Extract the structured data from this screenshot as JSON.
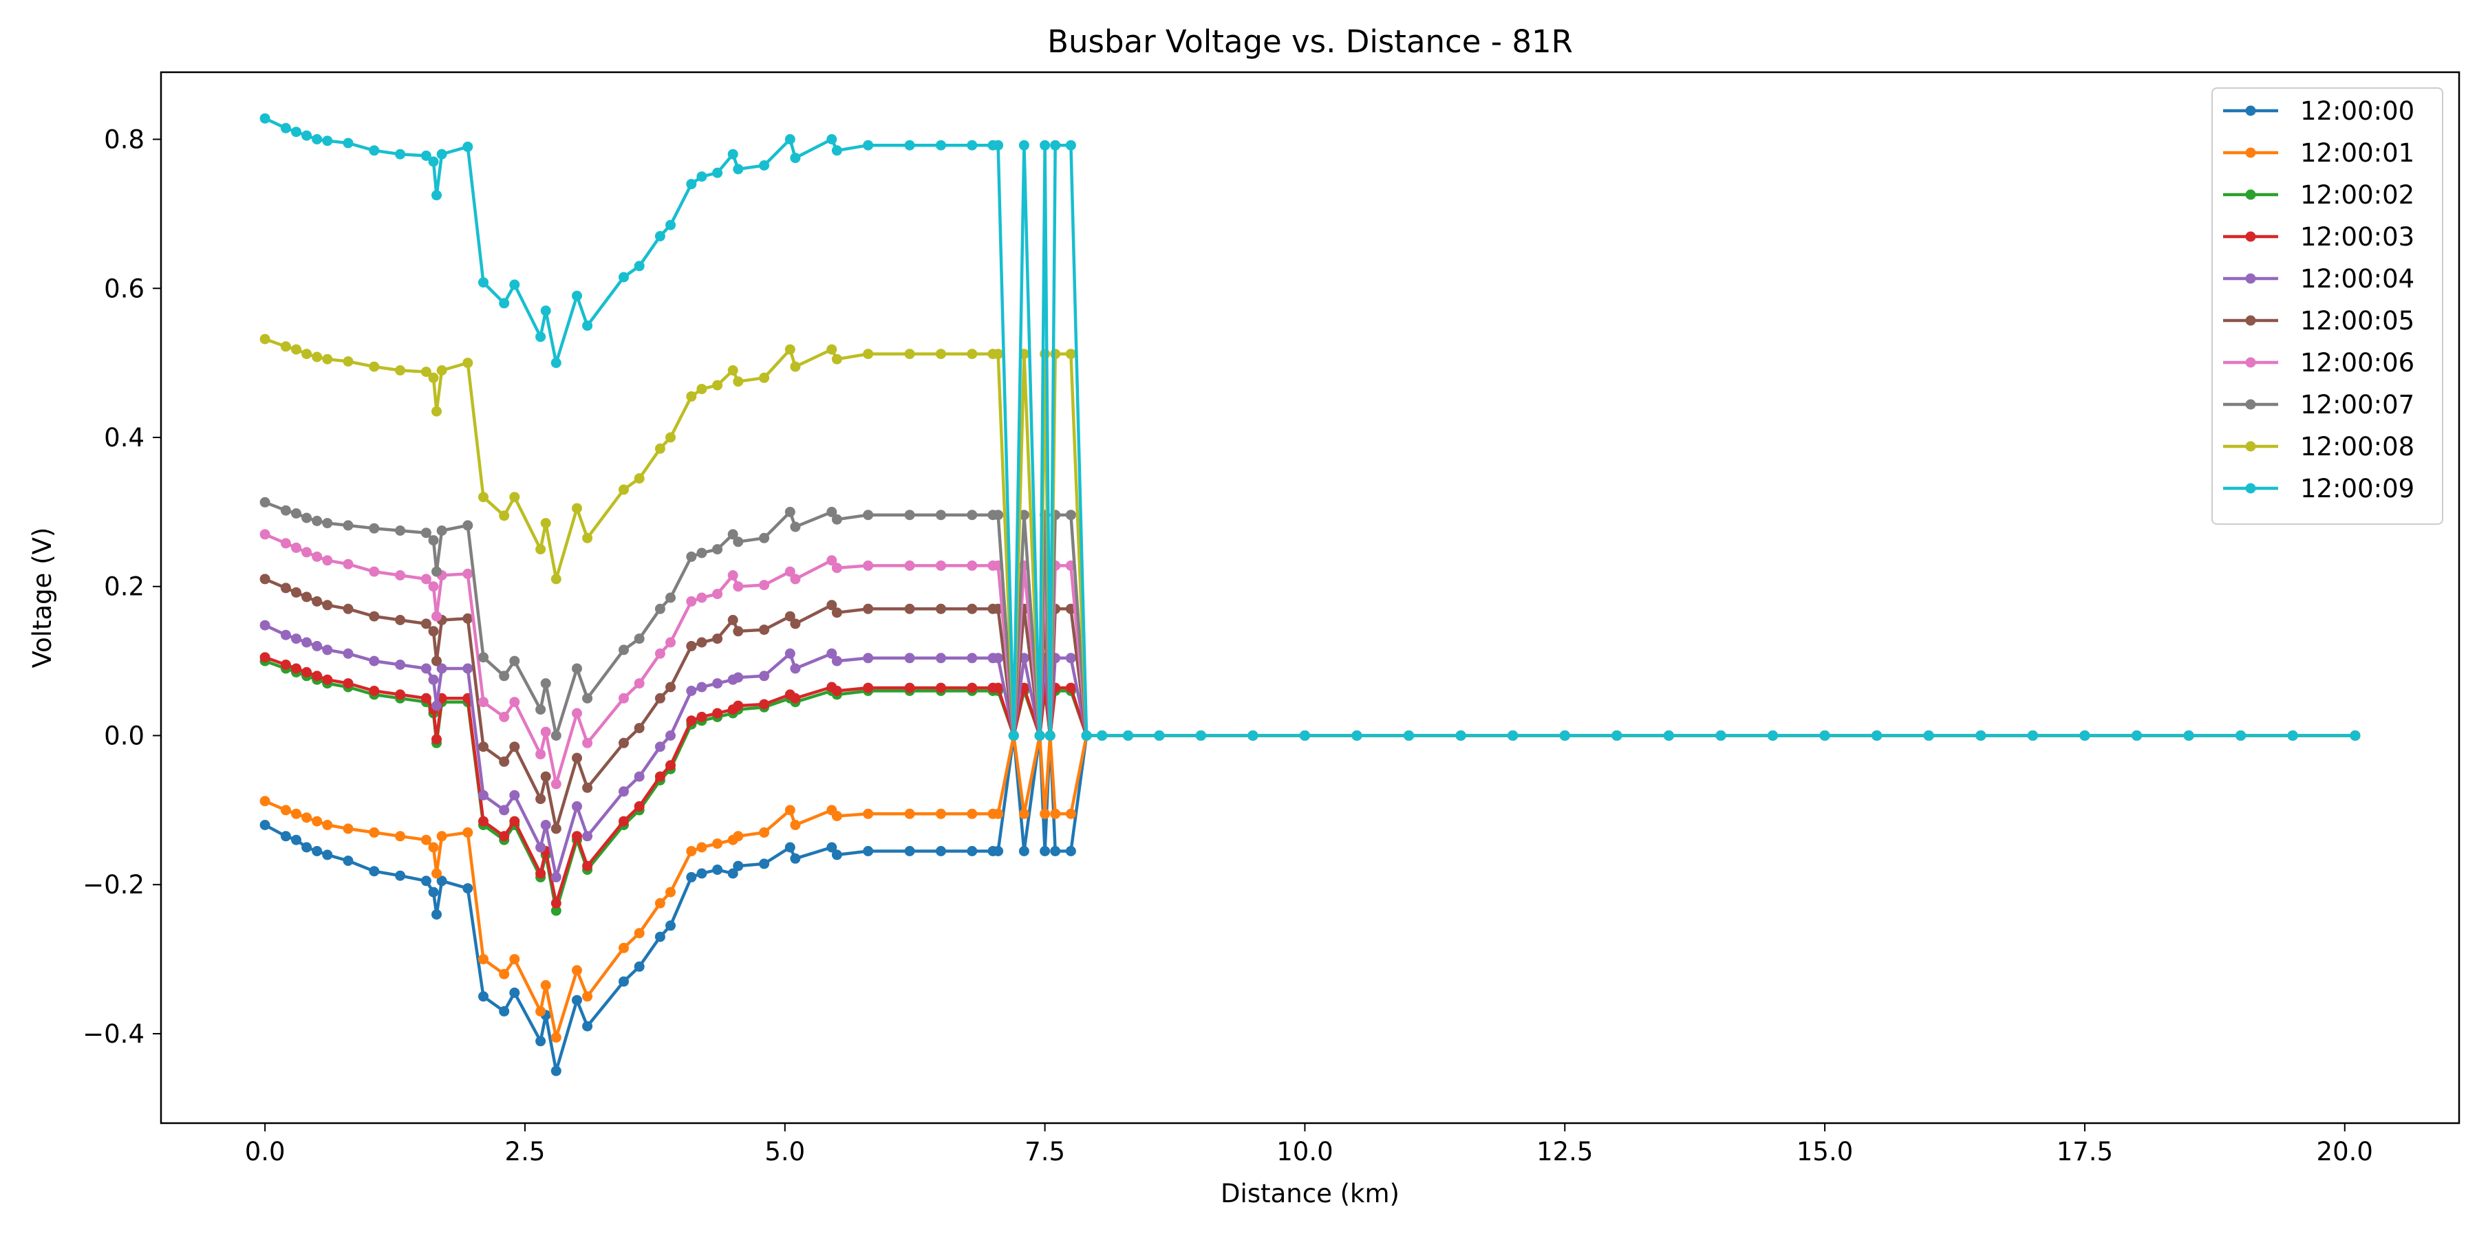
{
  "chart_data": {
    "type": "line",
    "title": "Busbar Voltage vs. Distance - 81R",
    "xlabel": "Distance (km)",
    "ylabel": "Voltage (V)",
    "xlim": [
      -1.0,
      21.1
    ],
    "ylim": [
      -0.52,
      0.89
    ],
    "xticks": [
      0.0,
      2.5,
      5.0,
      7.5,
      10.0,
      12.5,
      15.0,
      17.5,
      20.0
    ],
    "xtick_labels": [
      "0.0",
      "2.5",
      "5.0",
      "7.5",
      "10.0",
      "12.5",
      "15.0",
      "17.5",
      "20.0"
    ],
    "yticks": [
      -0.4,
      -0.2,
      0.0,
      0.2,
      0.4,
      0.6,
      0.8
    ],
    "ytick_labels": [
      "−0.4",
      "−0.2",
      "0.0",
      "0.2",
      "0.4",
      "0.6",
      "0.8"
    ],
    "legend_position": "top-right",
    "grid": false,
    "x": [
      0.0,
      0.2,
      0.3,
      0.4,
      0.5,
      0.6,
      0.8,
      1.05,
      1.3,
      1.55,
      1.62,
      1.65,
      1.7,
      1.95,
      2.1,
      2.3,
      2.4,
      2.65,
      2.7,
      2.8,
      3.0,
      3.1,
      3.45,
      3.6,
      3.8,
      3.9,
      4.1,
      4.2,
      4.35,
      4.5,
      4.55,
      4.8,
      5.05,
      5.1,
      5.45,
      5.5,
      5.8,
      6.2,
      6.5,
      6.8,
      7.0,
      7.05,
      7.2,
      7.3,
      7.45,
      7.5,
      7.55,
      7.6,
      7.75,
      7.9,
      8.05,
      8.3,
      8.6,
      9.0,
      9.5,
      10.0,
      10.5,
      11.0,
      11.5,
      12.0,
      12.5,
      13.0,
      13.5,
      14.0,
      14.5,
      15.0,
      15.5,
      16.0,
      16.5,
      17.0,
      17.5,
      18.0,
      18.5,
      19.0,
      19.5,
      20.1
    ],
    "series": [
      {
        "name": "12:00:00",
        "color": "#1f77b4",
        "values": [
          -0.12,
          -0.135,
          -0.14,
          -0.15,
          -0.155,
          -0.16,
          -0.168,
          -0.182,
          -0.188,
          -0.195,
          -0.21,
          -0.24,
          -0.195,
          -0.205,
          -0.35,
          -0.37,
          -0.345,
          -0.41,
          -0.375,
          -0.45,
          -0.355,
          -0.39,
          -0.33,
          -0.31,
          -0.27,
          -0.255,
          -0.19,
          -0.185,
          -0.18,
          -0.185,
          -0.175,
          -0.172,
          -0.15,
          -0.165,
          -0.15,
          -0.16,
          -0.155,
          -0.155,
          -0.155,
          -0.155,
          -0.155,
          -0.155,
          0.0,
          -0.155,
          0.0,
          -0.155,
          0.0,
          -0.155,
          -0.155,
          0.0,
          0.0,
          0.0,
          0.0,
          0.0,
          0.0,
          0.0,
          0.0,
          0.0,
          0.0,
          0.0,
          0.0,
          0.0,
          0.0,
          0.0,
          0.0,
          0.0,
          0.0,
          0.0,
          0.0,
          0.0,
          0.0,
          0.0,
          0.0,
          0.0,
          0.0,
          0.0
        ]
      },
      {
        "name": "12:00:01",
        "color": "#ff7f0e",
        "values": [
          -0.088,
          -0.1,
          -0.105,
          -0.11,
          -0.115,
          -0.12,
          -0.125,
          -0.13,
          -0.135,
          -0.14,
          -0.15,
          -0.185,
          -0.135,
          -0.13,
          -0.3,
          -0.32,
          -0.3,
          -0.37,
          -0.335,
          -0.405,
          -0.315,
          -0.35,
          -0.285,
          -0.265,
          -0.225,
          -0.21,
          -0.155,
          -0.15,
          -0.145,
          -0.14,
          -0.135,
          -0.13,
          -0.1,
          -0.12,
          -0.1,
          -0.108,
          -0.105,
          -0.105,
          -0.105,
          -0.105,
          -0.105,
          -0.105,
          0.0,
          -0.105,
          0.0,
          -0.105,
          0.0,
          -0.105,
          -0.105,
          0.0,
          0.0,
          0.0,
          0.0,
          0.0,
          0.0,
          0.0,
          0.0,
          0.0,
          0.0,
          0.0,
          0.0,
          0.0,
          0.0,
          0.0,
          0.0,
          0.0,
          0.0,
          0.0,
          0.0,
          0.0,
          0.0,
          0.0,
          0.0,
          0.0,
          0.0,
          0.0
        ]
      },
      {
        "name": "12:00:02",
        "color": "#2ca02c",
        "values": [
          0.1,
          0.09,
          0.085,
          0.08,
          0.075,
          0.07,
          0.065,
          0.055,
          0.05,
          0.045,
          0.03,
          -0.01,
          0.045,
          0.045,
          -0.12,
          -0.14,
          -0.12,
          -0.19,
          -0.16,
          -0.235,
          -0.14,
          -0.18,
          -0.12,
          -0.1,
          -0.06,
          -0.045,
          0.015,
          0.02,
          0.025,
          0.03,
          0.035,
          0.038,
          0.05,
          0.045,
          0.06,
          0.055,
          0.06,
          0.06,
          0.06,
          0.06,
          0.06,
          0.06,
          0.0,
          0.06,
          0.0,
          0.06,
          0.0,
          0.06,
          0.06,
          0.0,
          0.0,
          0.0,
          0.0,
          0.0,
          0.0,
          0.0,
          0.0,
          0.0,
          0.0,
          0.0,
          0.0,
          0.0,
          0.0,
          0.0,
          0.0,
          0.0,
          0.0,
          0.0,
          0.0,
          0.0,
          0.0,
          0.0,
          0.0,
          0.0,
          0.0,
          0.0
        ]
      },
      {
        "name": "12:00:03",
        "color": "#d62728",
        "values": [
          0.105,
          0.095,
          0.09,
          0.085,
          0.08,
          0.075,
          0.07,
          0.06,
          0.055,
          0.05,
          0.035,
          -0.005,
          0.05,
          0.05,
          -0.115,
          -0.135,
          -0.115,
          -0.185,
          -0.155,
          -0.225,
          -0.135,
          -0.175,
          -0.115,
          -0.095,
          -0.055,
          -0.04,
          0.02,
          0.025,
          0.03,
          0.035,
          0.04,
          0.042,
          0.055,
          0.05,
          0.065,
          0.06,
          0.064,
          0.064,
          0.064,
          0.064,
          0.064,
          0.064,
          0.0,
          0.064,
          0.0,
          0.064,
          0.0,
          0.064,
          0.064,
          0.0,
          0.0,
          0.0,
          0.0,
          0.0,
          0.0,
          0.0,
          0.0,
          0.0,
          0.0,
          0.0,
          0.0,
          0.0,
          0.0,
          0.0,
          0.0,
          0.0,
          0.0,
          0.0,
          0.0,
          0.0,
          0.0,
          0.0,
          0.0,
          0.0,
          0.0,
          0.0
        ]
      },
      {
        "name": "12:00:04",
        "color": "#9467bd",
        "values": [
          0.148,
          0.135,
          0.13,
          0.125,
          0.12,
          0.115,
          0.11,
          0.1,
          0.095,
          0.09,
          0.075,
          0.04,
          0.09,
          0.09,
          -0.08,
          -0.1,
          -0.08,
          -0.15,
          -0.12,
          -0.19,
          -0.095,
          -0.135,
          -0.075,
          -0.055,
          -0.015,
          0.0,
          0.06,
          0.065,
          0.07,
          0.075,
          0.078,
          0.08,
          0.11,
          0.09,
          0.11,
          0.1,
          0.104,
          0.104,
          0.104,
          0.104,
          0.104,
          0.104,
          0.0,
          0.104,
          0.0,
          0.104,
          0.0,
          0.104,
          0.104,
          0.0,
          0.0,
          0.0,
          0.0,
          0.0,
          0.0,
          0.0,
          0.0,
          0.0,
          0.0,
          0.0,
          0.0,
          0.0,
          0.0,
          0.0,
          0.0,
          0.0,
          0.0,
          0.0,
          0.0,
          0.0,
          0.0,
          0.0,
          0.0,
          0.0,
          0.0,
          0.0
        ]
      },
      {
        "name": "12:00:05",
        "color": "#8c564b",
        "values": [
          0.21,
          0.198,
          0.192,
          0.186,
          0.18,
          0.175,
          0.17,
          0.16,
          0.155,
          0.15,
          0.14,
          0.1,
          0.155,
          0.157,
          -0.015,
          -0.035,
          -0.015,
          -0.085,
          -0.055,
          -0.125,
          -0.03,
          -0.07,
          -0.01,
          0.01,
          0.05,
          0.065,
          0.12,
          0.125,
          0.13,
          0.155,
          0.14,
          0.142,
          0.16,
          0.15,
          0.175,
          0.165,
          0.17,
          0.17,
          0.17,
          0.17,
          0.17,
          0.17,
          0.0,
          0.17,
          0.0,
          0.17,
          0.0,
          0.17,
          0.17,
          0.0,
          0.0,
          0.0,
          0.0,
          0.0,
          0.0,
          0.0,
          0.0,
          0.0,
          0.0,
          0.0,
          0.0,
          0.0,
          0.0,
          0.0,
          0.0,
          0.0,
          0.0,
          0.0,
          0.0,
          0.0,
          0.0,
          0.0,
          0.0,
          0.0,
          0.0,
          0.0
        ]
      },
      {
        "name": "12:00:06",
        "color": "#e377c2",
        "values": [
          0.27,
          0.258,
          0.252,
          0.246,
          0.24,
          0.235,
          0.23,
          0.22,
          0.215,
          0.21,
          0.2,
          0.16,
          0.215,
          0.217,
          0.045,
          0.025,
          0.045,
          -0.025,
          0.005,
          -0.065,
          0.03,
          -0.01,
          0.05,
          0.07,
          0.11,
          0.125,
          0.18,
          0.185,
          0.19,
          0.215,
          0.2,
          0.202,
          0.22,
          0.21,
          0.235,
          0.225,
          0.228,
          0.228,
          0.228,
          0.228,
          0.228,
          0.228,
          0.0,
          0.228,
          0.0,
          0.228,
          0.0,
          0.228,
          0.228,
          0.0,
          0.0,
          0.0,
          0.0,
          0.0,
          0.0,
          0.0,
          0.0,
          0.0,
          0.0,
          0.0,
          0.0,
          0.0,
          0.0,
          0.0,
          0.0,
          0.0,
          0.0,
          0.0,
          0.0,
          0.0,
          0.0,
          0.0,
          0.0,
          0.0,
          0.0,
          0.0
        ]
      },
      {
        "name": "12:00:07",
        "color": "#7f7f7f",
        "values": [
          0.313,
          0.302,
          0.298,
          0.292,
          0.288,
          0.285,
          0.282,
          0.278,
          0.275,
          0.272,
          0.262,
          0.22,
          0.275,
          0.282,
          0.105,
          0.08,
          0.1,
          0.035,
          0.07,
          0.0,
          0.09,
          0.05,
          0.115,
          0.13,
          0.17,
          0.185,
          0.24,
          0.245,
          0.25,
          0.27,
          0.26,
          0.265,
          0.3,
          0.28,
          0.3,
          0.29,
          0.296,
          0.296,
          0.296,
          0.296,
          0.296,
          0.296,
          0.0,
          0.296,
          0.0,
          0.296,
          0.0,
          0.296,
          0.296,
          0.0,
          0.0,
          0.0,
          0.0,
          0.0,
          0.0,
          0.0,
          0.0,
          0.0,
          0.0,
          0.0,
          0.0,
          0.0,
          0.0,
          0.0,
          0.0,
          0.0,
          0.0,
          0.0,
          0.0,
          0.0,
          0.0,
          0.0,
          0.0,
          0.0,
          0.0,
          0.0
        ]
      },
      {
        "name": "12:00:08",
        "color": "#bcbd22",
        "values": [
          0.532,
          0.522,
          0.518,
          0.512,
          0.508,
          0.505,
          0.502,
          0.495,
          0.49,
          0.488,
          0.48,
          0.435,
          0.49,
          0.5,
          0.32,
          0.295,
          0.32,
          0.25,
          0.285,
          0.21,
          0.305,
          0.265,
          0.33,
          0.345,
          0.385,
          0.4,
          0.455,
          0.465,
          0.47,
          0.49,
          0.475,
          0.48,
          0.518,
          0.495,
          0.518,
          0.505,
          0.512,
          0.512,
          0.512,
          0.512,
          0.512,
          0.512,
          0.0,
          0.512,
          0.0,
          0.512,
          0.0,
          0.512,
          0.512,
          0.0,
          0.0,
          0.0,
          0.0,
          0.0,
          0.0,
          0.0,
          0.0,
          0.0,
          0.0,
          0.0,
          0.0,
          0.0,
          0.0,
          0.0,
          0.0,
          0.0,
          0.0,
          0.0,
          0.0,
          0.0,
          0.0,
          0.0,
          0.0,
          0.0,
          0.0,
          0.0
        ]
      },
      {
        "name": "12:00:09",
        "color": "#17becf",
        "values": [
          0.828,
          0.815,
          0.81,
          0.805,
          0.8,
          0.798,
          0.795,
          0.785,
          0.78,
          0.778,
          0.77,
          0.725,
          0.78,
          0.79,
          0.608,
          0.58,
          0.605,
          0.535,
          0.57,
          0.5,
          0.59,
          0.55,
          0.615,
          0.63,
          0.67,
          0.685,
          0.74,
          0.75,
          0.755,
          0.78,
          0.76,
          0.765,
          0.8,
          0.775,
          0.8,
          0.785,
          0.792,
          0.792,
          0.792,
          0.792,
          0.792,
          0.792,
          0.0,
          0.792,
          0.0,
          0.792,
          0.0,
          0.792,
          0.792,
          0.0,
          0.0,
          0.0,
          0.0,
          0.0,
          0.0,
          0.0,
          0.0,
          0.0,
          0.0,
          0.0,
          0.0,
          0.0,
          0.0,
          0.0,
          0.0,
          0.0,
          0.0,
          0.0,
          0.0,
          0.0,
          0.0,
          0.0,
          0.0,
          0.0,
          0.0,
          0.0
        ]
      }
    ]
  }
}
